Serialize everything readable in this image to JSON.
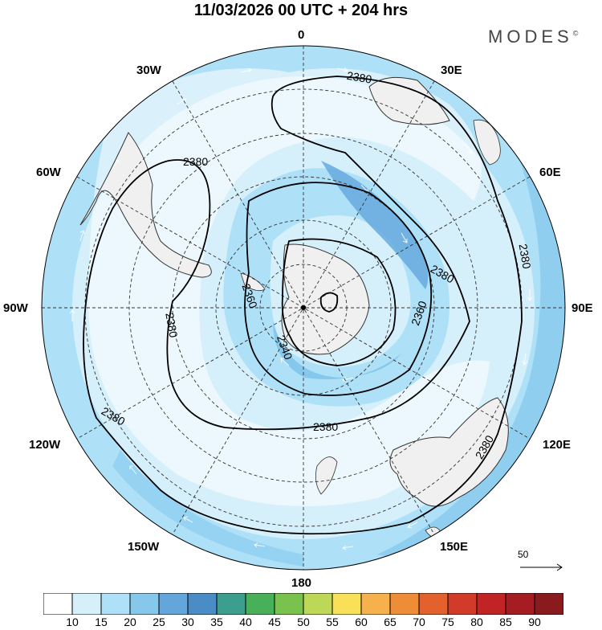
{
  "title": "11/03/2026  00 UTC  + 204 hrs",
  "brand": {
    "name": "MODES",
    "mark": "©"
  },
  "longitude_labels": {
    "top": "0",
    "n30e": "30E",
    "n60e": "60E",
    "e90": "90E",
    "s120e": "120E",
    "s150e": "150E",
    "bottom": "180",
    "s150w": "150W",
    "s120w": "120W",
    "w90": "90W",
    "n60w": "60W",
    "n30w": "30W"
  },
  "contour_labels": {
    "c1": "2380",
    "c2": "2380",
    "c3": "2380",
    "c4": "2380",
    "c5": "2380",
    "c6": "2380",
    "c7": "2380",
    "c8": "2380",
    "c9": "2360",
    "c10": "2360",
    "c11": "2340"
  },
  "wind_reference": "50",
  "colorbar": {
    "colors": [
      "#ffffff",
      "#d6f0fb",
      "#aee0f7",
      "#86c8ec",
      "#62a6dc",
      "#4a8cc6",
      "#3c9e8e",
      "#47b058",
      "#79c24e",
      "#bcd856",
      "#fadf58",
      "#f6b04c",
      "#ef8c38",
      "#e4612e",
      "#d33a2a",
      "#c22426",
      "#a51c22",
      "#891a1e"
    ],
    "ticks": [
      "10",
      "15",
      "20",
      "25",
      "30",
      "35",
      "40",
      "45",
      "50",
      "55",
      "60",
      "65",
      "70",
      "75",
      "80",
      "85",
      "90"
    ]
  }
}
